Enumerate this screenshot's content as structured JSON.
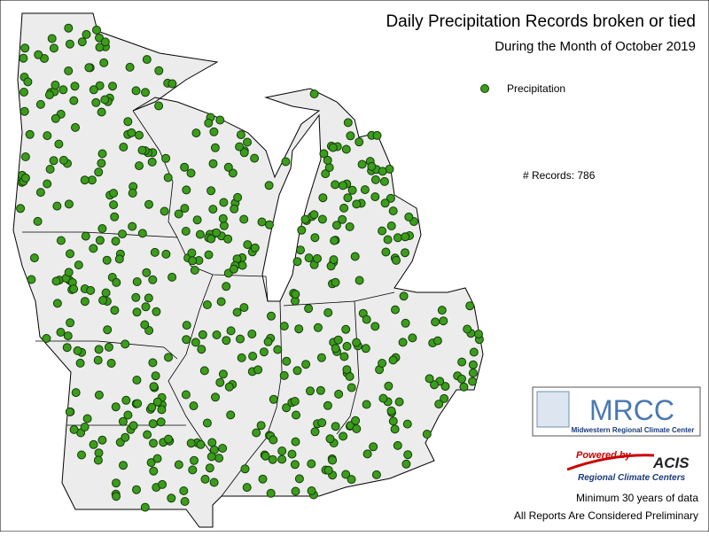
{
  "header": {
    "title": "Daily Precipitation Records broken or tied",
    "subtitle": "During the Month of October 2019"
  },
  "legend": {
    "label": "Precipitation",
    "records": "# Records: 786"
  },
  "logo": {
    "name": "MRCC",
    "full_name": "Midwestern Regional Climate Center",
    "powered_by": "Powered by",
    "acis": "ACIS",
    "acis_full": "Regional Climate Centers"
  },
  "footer": {
    "minimum": "Minimum 30 years of data",
    "note": "All Reports Are Considered Preliminary"
  }
}
